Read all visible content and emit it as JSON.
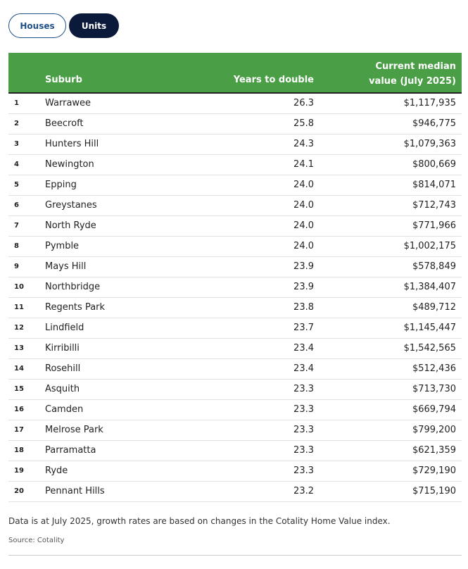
{
  "tabs": [
    "Houses",
    "Units"
  ],
  "table": {
    "headers": [
      "Suburb",
      "Years to double",
      "Current median value (July 2025)"
    ],
    "rows": [
      [
        "1",
        "Warrawee",
        "26.3",
        "$1,117,935"
      ],
      [
        "2",
        "Beecroft",
        "25.8",
        "$946,775"
      ],
      [
        "3",
        "Hunters Hill",
        "24.3",
        "$1,079,363"
      ],
      [
        "4",
        "Newington",
        "24.1",
        "$800,669"
      ],
      [
        "5",
        "Epping",
        "24.0",
        "$814,071"
      ],
      [
        "6",
        "Greystanes",
        "24.0",
        "$712,743"
      ],
      [
        "7",
        "North Ryde",
        "24.0",
        "$771,966"
      ],
      [
        "8",
        "Pymble",
        "24.0",
        "$1,002,175"
      ],
      [
        "9",
        "Mays Hill",
        "23.9",
        "$578,849"
      ],
      [
        "10",
        "Northbridge",
        "23.9",
        "$1,384,407"
      ],
      [
        "11",
        "Regents Park",
        "23.8",
        "$489,712"
      ],
      [
        "12",
        "Lindfield",
        "23.7",
        "$1,145,447"
      ],
      [
        "13",
        "Kirribilli",
        "23.4",
        "$1,542,565"
      ],
      [
        "14",
        "Rosehill",
        "23.4",
        "$512,436"
      ],
      [
        "15",
        "Asquith",
        "23.3",
        "$713,730"
      ],
      [
        "16",
        "Camden",
        "23.3",
        "$669,794"
      ],
      [
        "17",
        "Melrose Park",
        "23.3",
        "$799,200"
      ],
      [
        "18",
        "Parramatta",
        "23.3",
        "$621,359"
      ],
      [
        "19",
        "Ryde",
        "23.3",
        "$729,190"
      ],
      [
        "20",
        "Pennant Hills",
        "23.2",
        "$715,190"
      ]
    ]
  },
  "footnote": "Data is at July 2025, growth rates are based on changes in the Cotality Home Value index.",
  "source": "Source: Cotality"
}
